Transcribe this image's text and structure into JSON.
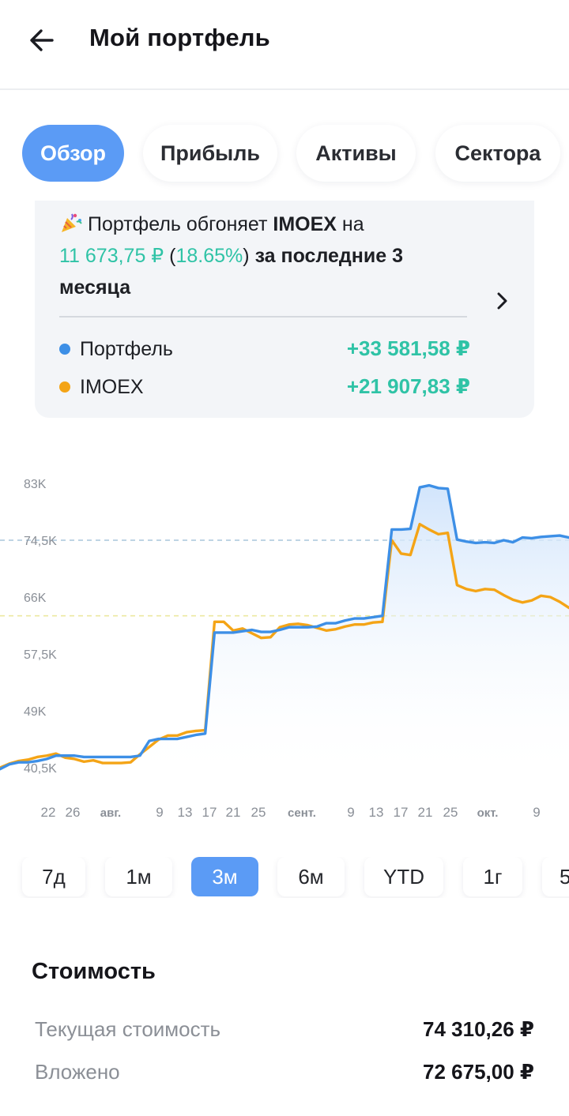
{
  "header": {
    "title": "Мой портфель",
    "back_icon": "arrow-left-icon"
  },
  "tabs": [
    {
      "label": "Обзор",
      "active": true
    },
    {
      "label": "Прибыль",
      "active": false
    },
    {
      "label": "Активы",
      "active": false
    },
    {
      "label": "Сектора",
      "active": false
    }
  ],
  "comparison": {
    "emoji_icon": "party-popper-icon",
    "text_before": "Портфель обгоняет ",
    "benchmark": "IMOEX",
    "text_on": " на",
    "diff_amount": "11 673,75 ₽",
    "diff_open": " (",
    "diff_percent": "18.65%",
    "diff_close": ")",
    "text_after": " за последние 3 месяца",
    "chevron_icon": "chevron-right-icon",
    "rows": [
      {
        "name": "Портфель",
        "value": "+33 581,58 ₽",
        "color": "#3d8fe6"
      },
      {
        "name": "IMOEX",
        "value": "+21 907,83 ₽",
        "color": "#f4a416"
      }
    ]
  },
  "chart_data": {
    "type": "line",
    "series": [
      {
        "name": "Портфель",
        "color": "#3d8fe6",
        "values": [
          40.3,
          41,
          41.3,
          41.3,
          41.5,
          41.8,
          42.3,
          42.3,
          42.3,
          42.1,
          42.1,
          42.1,
          42.1,
          42.1,
          42.1,
          42.3,
          44.5,
          44.8,
          44.8,
          44.8,
          45.1,
          45.4,
          45.6,
          60.7,
          60.7,
          60.7,
          60.9,
          61.1,
          60.8,
          60.8,
          61.1,
          61.5,
          61.5,
          61.5,
          61.6,
          62.1,
          62.1,
          62.5,
          62.8,
          62.8,
          63,
          63.2,
          76.1,
          76.1,
          76.2,
          82.4,
          82.7,
          82.3,
          82.2,
          74.6,
          74.3,
          74.1,
          74.2,
          74.1,
          74.5,
          74.2,
          74.9,
          74.8,
          75,
          75.1,
          75.2,
          74.9
        ]
      },
      {
        "name": "IMOEX",
        "color": "#f4a416",
        "values": [
          40.5,
          41.1,
          41.5,
          41.7,
          42.1,
          42.3,
          42.6,
          42,
          41.8,
          41.4,
          41.6,
          41.2,
          41.2,
          41.2,
          41.3,
          42.5,
          43.6,
          44.7,
          45.3,
          45.3,
          45.8,
          46,
          46.1,
          62.3,
          62.3,
          61,
          61.3,
          60.6,
          59.9,
          60,
          61.5,
          61.9,
          62,
          61.8,
          61.4,
          61,
          61.2,
          61.6,
          61.9,
          61.9,
          62.2,
          62.3,
          74.5,
          72.5,
          72.3,
          76.9,
          76.1,
          75.4,
          75.6,
          67.8,
          67.2,
          66.9,
          67.2,
          67.1,
          66.3,
          65.6,
          65.2,
          65.5,
          66.2,
          66,
          65.3,
          64.4
        ]
      }
    ],
    "ylim": [
      39,
      84
    ],
    "yticks": [
      {
        "label": "83K",
        "value": 83
      },
      {
        "label": "74,5K",
        "value": 74.5
      },
      {
        "label": "66K",
        "value": 66
      },
      {
        "label": "57,5K",
        "value": 57.5
      },
      {
        "label": "49K",
        "value": 49
      },
      {
        "label": "40,5K",
        "value": 40.5
      }
    ],
    "xticks": [
      "22",
      "26",
      "авг.",
      "9",
      "13",
      "17",
      "21",
      "25",
      "сент.",
      "9",
      "13",
      "17",
      "21",
      "25",
      "окт.",
      "9"
    ],
    "reference_lines": [
      74.5,
      63.2
    ],
    "grid": false
  },
  "periods": [
    {
      "label": "7д",
      "active": false
    },
    {
      "label": "1м",
      "active": false
    },
    {
      "label": "3м",
      "active": true
    },
    {
      "label": "6м",
      "active": false
    },
    {
      "label": "YTD",
      "active": false
    },
    {
      "label": "1г",
      "active": false
    },
    {
      "label": "5",
      "active": false
    }
  ],
  "value_section": {
    "title": "Стоимость",
    "rows": [
      {
        "label": "Текущая стоимость",
        "value": "74 310,26 ₽"
      },
      {
        "label": "Вложено",
        "value": "72 675,00 ₽"
      }
    ]
  }
}
